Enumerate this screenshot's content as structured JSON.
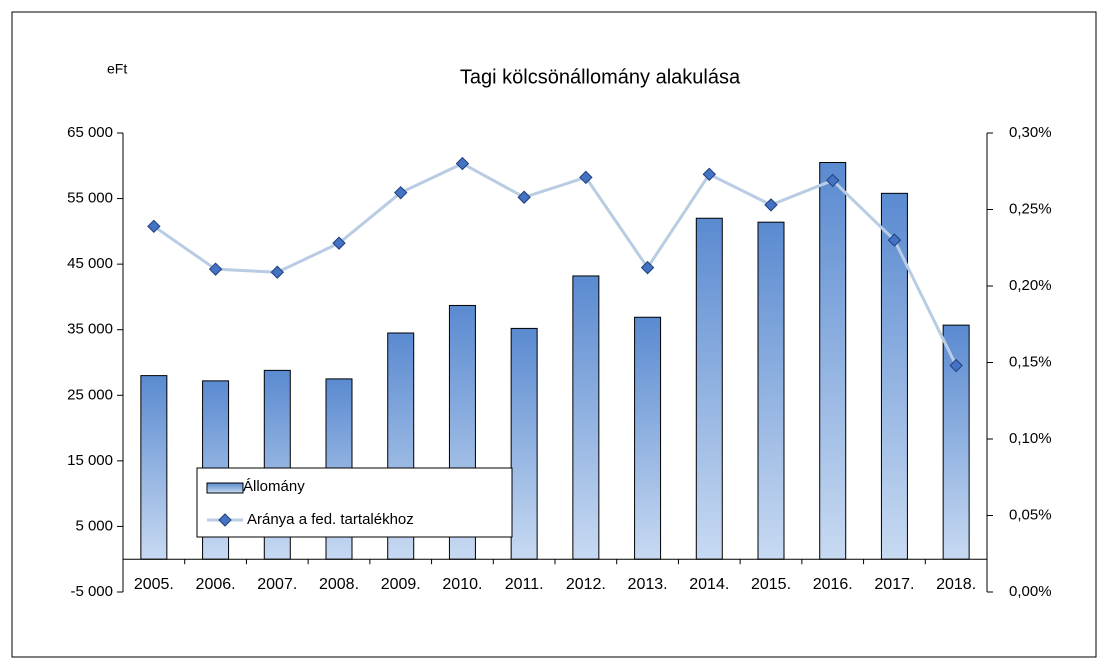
{
  "chart_data": {
    "type": "bar",
    "title": "Tagi kölcsönállomány alakulása",
    "y_unit_label": "eFt",
    "categories": [
      "2005.",
      "2006.",
      "2007.",
      "2008.",
      "2009.",
      "2010.",
      "2011.",
      "2012.",
      "2013.",
      "2014.",
      "2015.",
      "2016.",
      "2017.",
      "2018."
    ],
    "series": [
      {
        "name": "Állomány",
        "type": "bar",
        "color": "#4f81bd",
        "values": [
          28000,
          27200,
          28800,
          27500,
          34500,
          38700,
          35200,
          43200,
          36900,
          52000,
          51400,
          60500,
          55800,
          35700
        ]
      },
      {
        "name": "Aránya a fed. tartalékhoz",
        "type": "line",
        "axis": "y2",
        "color": "#b8cce4",
        "marker_color": "#4472c4",
        "values": [
          0.239,
          0.211,
          0.209,
          0.228,
          0.261,
          0.28,
          0.258,
          0.271,
          0.212,
          0.273,
          0.253,
          0.269,
          0.23,
          0.148
        ]
      }
    ],
    "ylim": [
      -5000,
      65000
    ],
    "yticks": [
      {
        "value": -5000,
        "label": "-5 000"
      },
      {
        "value": 5000,
        "label": "5 000"
      },
      {
        "value": 15000,
        "label": "15 000"
      },
      {
        "value": 25000,
        "label": "25 000"
      },
      {
        "value": 35000,
        "label": "35 000"
      },
      {
        "value": 45000,
        "label": "45 000"
      },
      {
        "value": 55000,
        "label": "55 000"
      },
      {
        "value": 65000,
        "label": "65 000"
      }
    ],
    "y2lim": [
      0,
      0.3
    ],
    "y2ticks": [
      {
        "value": 0,
        "label": "0,00%"
      },
      {
        "value": 0.05,
        "label": "0,05%"
      },
      {
        "value": 0.1,
        "label": "0,10%"
      },
      {
        "value": 0.15,
        "label": "0,15%"
      },
      {
        "value": 0.2,
        "label": "0,20%"
      },
      {
        "value": 0.25,
        "label": "0,25%"
      },
      {
        "value": 0.3,
        "label": "0,30%"
      }
    ],
    "grid": false,
    "legend": "bottom-left"
  }
}
